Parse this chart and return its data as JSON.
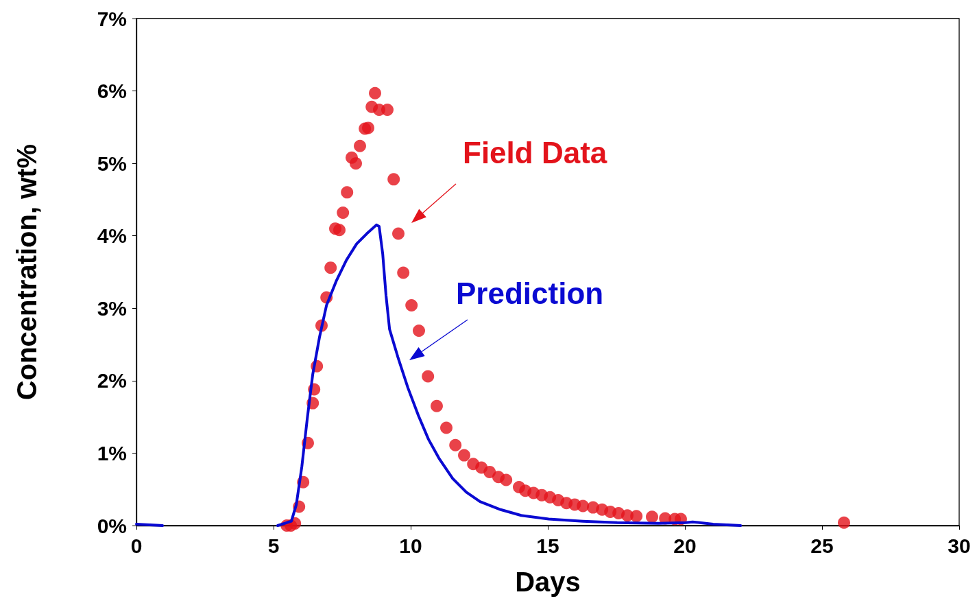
{
  "chart_data": {
    "type": "scatter",
    "xlabel": "Days",
    "ylabel": "Concentration, wt%",
    "xlim": [
      0,
      30
    ],
    "xticks": [
      0,
      5,
      10,
      15,
      20,
      25,
      30
    ],
    "ylim": [
      0,
      7
    ],
    "yticks": [
      {
        "value": 0,
        "label": "0%"
      },
      {
        "value": 1,
        "label": "1%"
      },
      {
        "value": 2,
        "label": "2%"
      },
      {
        "value": 3,
        "label": "3%"
      },
      {
        "value": 4,
        "label": "4%"
      },
      {
        "value": 5,
        "label": "5%"
      },
      {
        "value": 6,
        "label": "6%"
      },
      {
        "value": 7,
        "label": "7%"
      }
    ],
    "grid": false,
    "legend": false,
    "series": [
      {
        "name": "Field Data",
        "marker": "circle",
        "color": "#e3131b",
        "x": [
          5.48,
          5.63,
          5.78,
          5.93,
          6.08,
          6.25,
          6.43,
          6.48,
          6.58,
          6.75,
          6.93,
          7.08,
          7.25,
          7.4,
          7.53,
          7.68,
          7.85,
          8.0,
          8.15,
          8.33,
          8.45,
          8.58,
          8.7,
          8.85,
          9.15,
          9.38,
          9.55,
          9.73,
          10.03,
          10.3,
          10.63,
          10.95,
          11.3,
          11.63,
          11.95,
          12.28,
          12.58,
          12.88,
          13.2,
          13.48,
          13.95,
          14.18,
          14.48,
          14.78,
          15.08,
          15.38,
          15.68,
          15.98,
          16.28,
          16.65,
          16.98,
          17.28,
          17.58,
          17.9,
          18.23,
          18.8,
          19.28,
          19.63,
          19.85,
          25.8
        ],
        "values": [
          0,
          0,
          0.03,
          0.26,
          0.6,
          1.14,
          1.69,
          1.88,
          2.2,
          2.76,
          3.15,
          3.56,
          4.1,
          4.08,
          4.32,
          4.6,
          5.08,
          5.0,
          5.24,
          5.48,
          5.49,
          5.78,
          5.97,
          5.74,
          5.74,
          4.78,
          4.03,
          3.49,
          3.04,
          2.69,
          2.06,
          1.65,
          1.35,
          1.11,
          0.97,
          0.85,
          0.8,
          0.74,
          0.67,
          0.63,
          0.53,
          0.48,
          0.45,
          0.42,
          0.39,
          0.35,
          0.31,
          0.29,
          0.27,
          0.25,
          0.22,
          0.19,
          0.17,
          0.14,
          0.13,
          0.12,
          0.1,
          0.09,
          0.09,
          0.04
        ]
      },
      {
        "name": "Prediction",
        "type": "line",
        "marker": "none",
        "line_style": "solid",
        "color": "#0a0ad2",
        "x": [
          0,
          0.95,
          3,
          5.15,
          5.65,
          5.83,
          6.03,
          6.23,
          6.43,
          6.68,
          6.93,
          7.28,
          7.65,
          8.03,
          8.4,
          8.75,
          8.85,
          8.98,
          9.1,
          9.23,
          9.53,
          9.9,
          10.28,
          10.65,
          11.03,
          11.53,
          12.03,
          12.53,
          13.28,
          14.03,
          15.03,
          16.28,
          17.53,
          19.03,
          20.03,
          20.28,
          21.03,
          22.03
        ],
        "values": [
          0.02,
          0,
          null,
          0,
          0.06,
          0.29,
          0.81,
          1.48,
          2.09,
          2.61,
          3.04,
          3.37,
          3.66,
          3.89,
          4.03,
          4.15,
          4.13,
          3.75,
          3.18,
          2.71,
          2.33,
          1.9,
          1.52,
          1.19,
          0.93,
          0.65,
          0.46,
          0.33,
          0.22,
          0.14,
          0.09,
          0.06,
          0.04,
          0.03,
          0.04,
          0.05,
          0.02,
          0
        ]
      }
    ]
  }
}
